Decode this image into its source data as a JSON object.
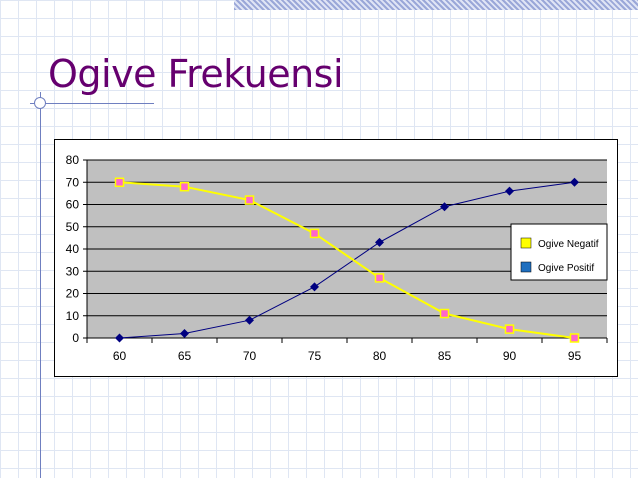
{
  "slide": {
    "title": "Ogive Frekuensi"
  },
  "colors": {
    "title": "#66006f",
    "plot_background": "#c0c0c0",
    "negatif_line": "#ffff00",
    "negatif_marker": "#ff66cc",
    "positif_line": "#000080"
  },
  "chart_data": {
    "type": "line",
    "title": "",
    "xlabel": "",
    "ylabel": "",
    "categories": [
      "60",
      "65",
      "70",
      "75",
      "80",
      "85",
      "90",
      "95"
    ],
    "y_ticks": [
      "0",
      "10",
      "20",
      "30",
      "40",
      "50",
      "60",
      "70",
      "80"
    ],
    "ylim": [
      0,
      80
    ],
    "grid": "horizontal",
    "legend_position": "right",
    "series": [
      {
        "name": "Ogive Negatif",
        "values": [
          70,
          68,
          62,
          47,
          27,
          11,
          4,
          0
        ],
        "color": "#ffff00",
        "marker": "square",
        "marker_color": "#ff66cc"
      },
      {
        "name": "Ogive Positif",
        "values": [
          0,
          2,
          8,
          23,
          43,
          59,
          66,
          70
        ],
        "color": "#000080",
        "marker": "diamond",
        "marker_color": "#000080"
      }
    ]
  }
}
